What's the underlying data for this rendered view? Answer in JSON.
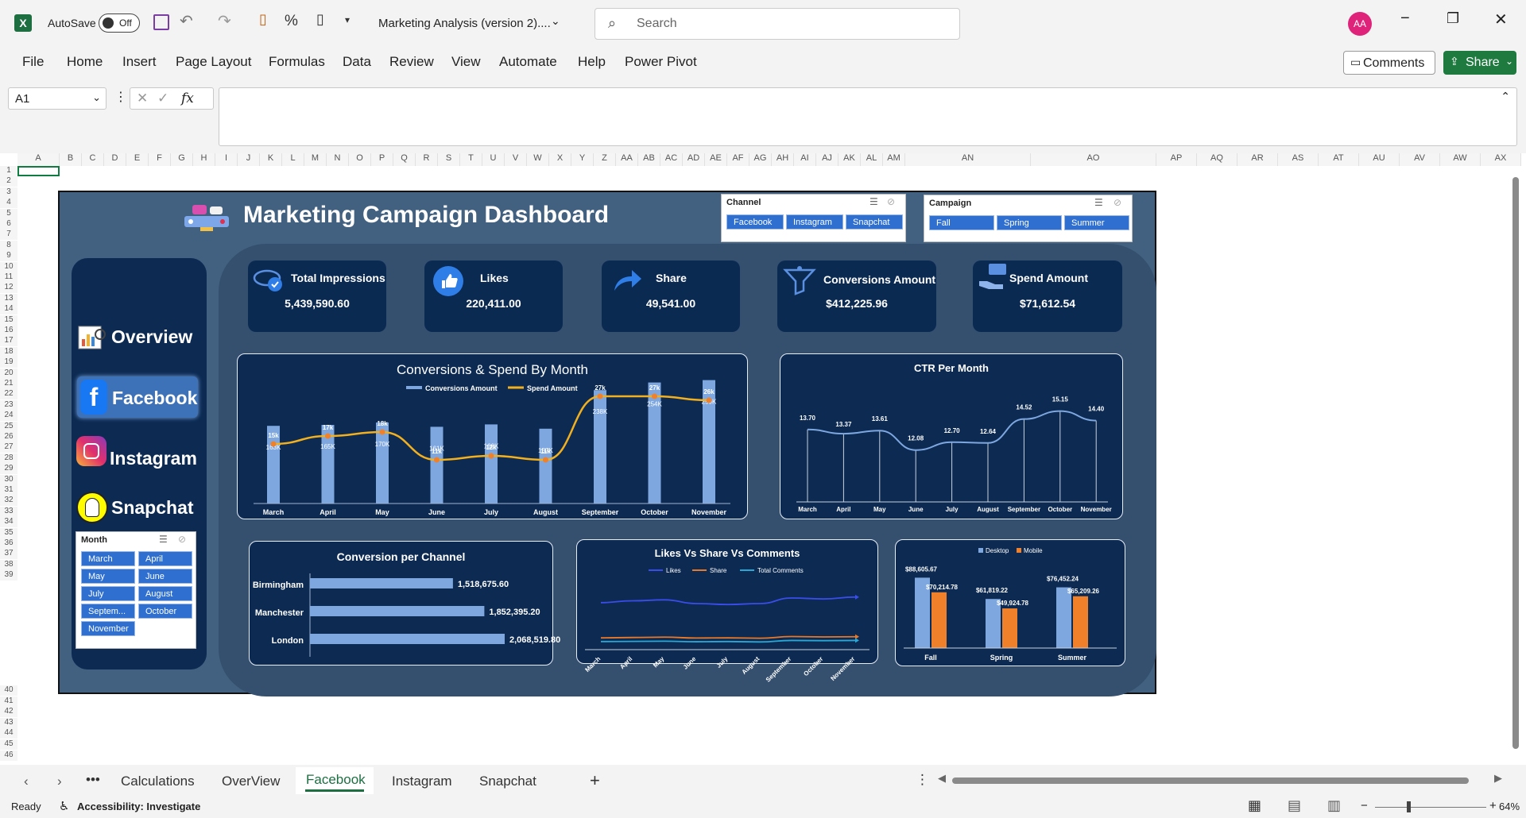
{
  "app": {
    "autosave_label": "AutoSave",
    "autosave_state": "Off",
    "doc_title": "Marketing Analysis (version 2)....",
    "search_placeholder": "Search",
    "avatar_initials": "AA",
    "comments_label": "Comments",
    "share_label": "Share"
  },
  "ribbon_tabs": [
    "File",
    "Home",
    "Insert",
    "Page Layout",
    "Formulas",
    "Data",
    "Review",
    "View",
    "Automate",
    "Help",
    "Power Pivot"
  ],
  "formula_bar": {
    "name_box": "A1",
    "fx": "fx",
    "content": ""
  },
  "columns": [
    "A",
    "B",
    "C",
    "D",
    "E",
    "F",
    "G",
    "H",
    "I",
    "J",
    "K",
    "L",
    "M",
    "N",
    "O",
    "P",
    "Q",
    "R",
    "S",
    "T",
    "U",
    "V",
    "W",
    "X",
    "Y",
    "Z",
    "AA",
    "AB",
    "AC",
    "AD",
    "AE",
    "AF",
    "AG",
    "AH",
    "AI",
    "AJ",
    "AK",
    "AL",
    "AM",
    "AN",
    "AO",
    "AP",
    "AQ",
    "AR",
    "AS",
    "AT",
    "AU",
    "AV",
    "AW",
    "AX"
  ],
  "rows": [
    "1",
    "2",
    "3",
    "4",
    "5",
    "6",
    "7",
    "8",
    "9",
    "10",
    "11",
    "12",
    "13",
    "14",
    "15",
    "16",
    "17",
    "18",
    "19",
    "20",
    "21",
    "22",
    "23",
    "24",
    "25",
    "26",
    "27",
    "28",
    "29",
    "30",
    "31",
    "32",
    "33",
    "34",
    "35",
    "36",
    "37",
    "38",
    "39",
    "40",
    "41",
    "42",
    "43",
    "44",
    "45",
    "46"
  ],
  "dashboard": {
    "title": "Marketing Campaign Dashboard",
    "nav": {
      "overview": "Overview",
      "facebook": "Facebook",
      "instagram": "Instagram",
      "snapchat": "Snapchat"
    },
    "channel_slicer": {
      "title": "Channel",
      "items": [
        "Facebook",
        "Instagram",
        "Snapchat"
      ]
    },
    "campaign_slicer": {
      "title": "Campaign",
      "items": [
        "Fall",
        "Spring",
        "Summer"
      ]
    },
    "month_slicer": {
      "title": "Month",
      "items": [
        "March",
        "April",
        "May",
        "June",
        "July",
        "August",
        "Septem...",
        "October",
        "November"
      ]
    },
    "kpis": [
      {
        "label": "Total Impressions",
        "value": "5,439,590.60"
      },
      {
        "label": "Likes",
        "value": "220,411.00"
      },
      {
        "label": "Share",
        "value": "49,541.00"
      },
      {
        "label": "Conversions Amount",
        "value": "$412,225.96"
      },
      {
        "label": "Spend Amount",
        "value": "$71,612.54"
      }
    ]
  },
  "chart_data": [
    {
      "type": "bar",
      "title": "Conversions & Spend By Month",
      "categories": [
        "March",
        "April",
        "May",
        "June",
        "July",
        "August",
        "September",
        "October",
        "November"
      ],
      "series": [
        {
          "name": "Conversions Amount",
          "values": [
            163000,
            165000,
            170000,
            161000,
            166000,
            157000,
            238000,
            254000,
            259000
          ],
          "labels": [
            "163K",
            "165K",
            "170K",
            "161K",
            "166K",
            "157K",
            "238K",
            "254K",
            "259K"
          ]
        },
        {
          "name": "Spend Amount",
          "values": [
            15000,
            17000,
            18000,
            11000,
            12000,
            11000,
            27000,
            27000,
            26000
          ],
          "labels": [
            "15k",
            "17k",
            "18k",
            "11k",
            "12k",
            "11k",
            "27k",
            "27k",
            "26k"
          ]
        }
      ]
    },
    {
      "type": "line",
      "title": "CTR Per Month",
      "categories": [
        "March",
        "April",
        "May",
        "June",
        "July",
        "August",
        "September",
        "October",
        "November"
      ],
      "values": [
        13.7,
        13.37,
        13.61,
        12.08,
        12.7,
        12.64,
        14.52,
        15.15,
        14.4
      ],
      "labels": [
        "13.70",
        "13.37",
        "13.61",
        "12.08",
        "12.70",
        "12.64",
        "14.52",
        "15.15",
        "14.40"
      ]
    },
    {
      "type": "bar",
      "title": "Conversion per Channel",
      "categories": [
        "Birmingham",
        "Manchester",
        "London"
      ],
      "values": [
        1518675.6,
        1852395.2,
        2068519.8
      ],
      "labels": [
        "1,518,675.60",
        "1,852,395.20",
        "2,068,519.80"
      ]
    },
    {
      "type": "line",
      "title": "Likes Vs Share Vs Comments",
      "categories": [
        "March",
        "April",
        "May",
        "June",
        "July",
        "August",
        "September",
        "October",
        "November"
      ],
      "series": [
        {
          "name": "Likes",
          "values": [
            24500,
            25500,
            26000,
            24000,
            23500,
            24000,
            27000,
            26500,
            27500
          ],
          "color": "#3a4de8"
        },
        {
          "name": "Share",
          "values": [
            5500,
            5700,
            5900,
            5400,
            5500,
            5300,
            6200,
            6000,
            6100
          ],
          "color": "#e8792a"
        },
        {
          "name": "Total Comments",
          "values": [
            3500,
            3600,
            3700,
            3400,
            3500,
            3300,
            4100,
            4000,
            4100
          ],
          "color": "#29a8d6"
        }
      ]
    },
    {
      "type": "bar",
      "title": "",
      "categories": [
        "Fall",
        "Spring",
        "Summer"
      ],
      "series": [
        {
          "name": "Desktop",
          "values": [
            88605.67,
            61819.22,
            76452.24
          ],
          "labels": [
            "$88,605.67",
            "$61,819.22",
            "$76,452.24"
          ]
        },
        {
          "name": "Mobile",
          "values": [
            70214.78,
            49924.78,
            65209.26
          ],
          "labels": [
            "$70,214.78",
            "$49,924.78",
            "$65,209.26"
          ]
        }
      ]
    }
  ],
  "sheet_tabs": [
    "Calculations",
    "OverView",
    "Facebook",
    "Instagram",
    "Snapchat"
  ],
  "status": {
    "ready": "Ready",
    "accessibility": "Accessibility: Investigate",
    "zoom": "64%"
  }
}
